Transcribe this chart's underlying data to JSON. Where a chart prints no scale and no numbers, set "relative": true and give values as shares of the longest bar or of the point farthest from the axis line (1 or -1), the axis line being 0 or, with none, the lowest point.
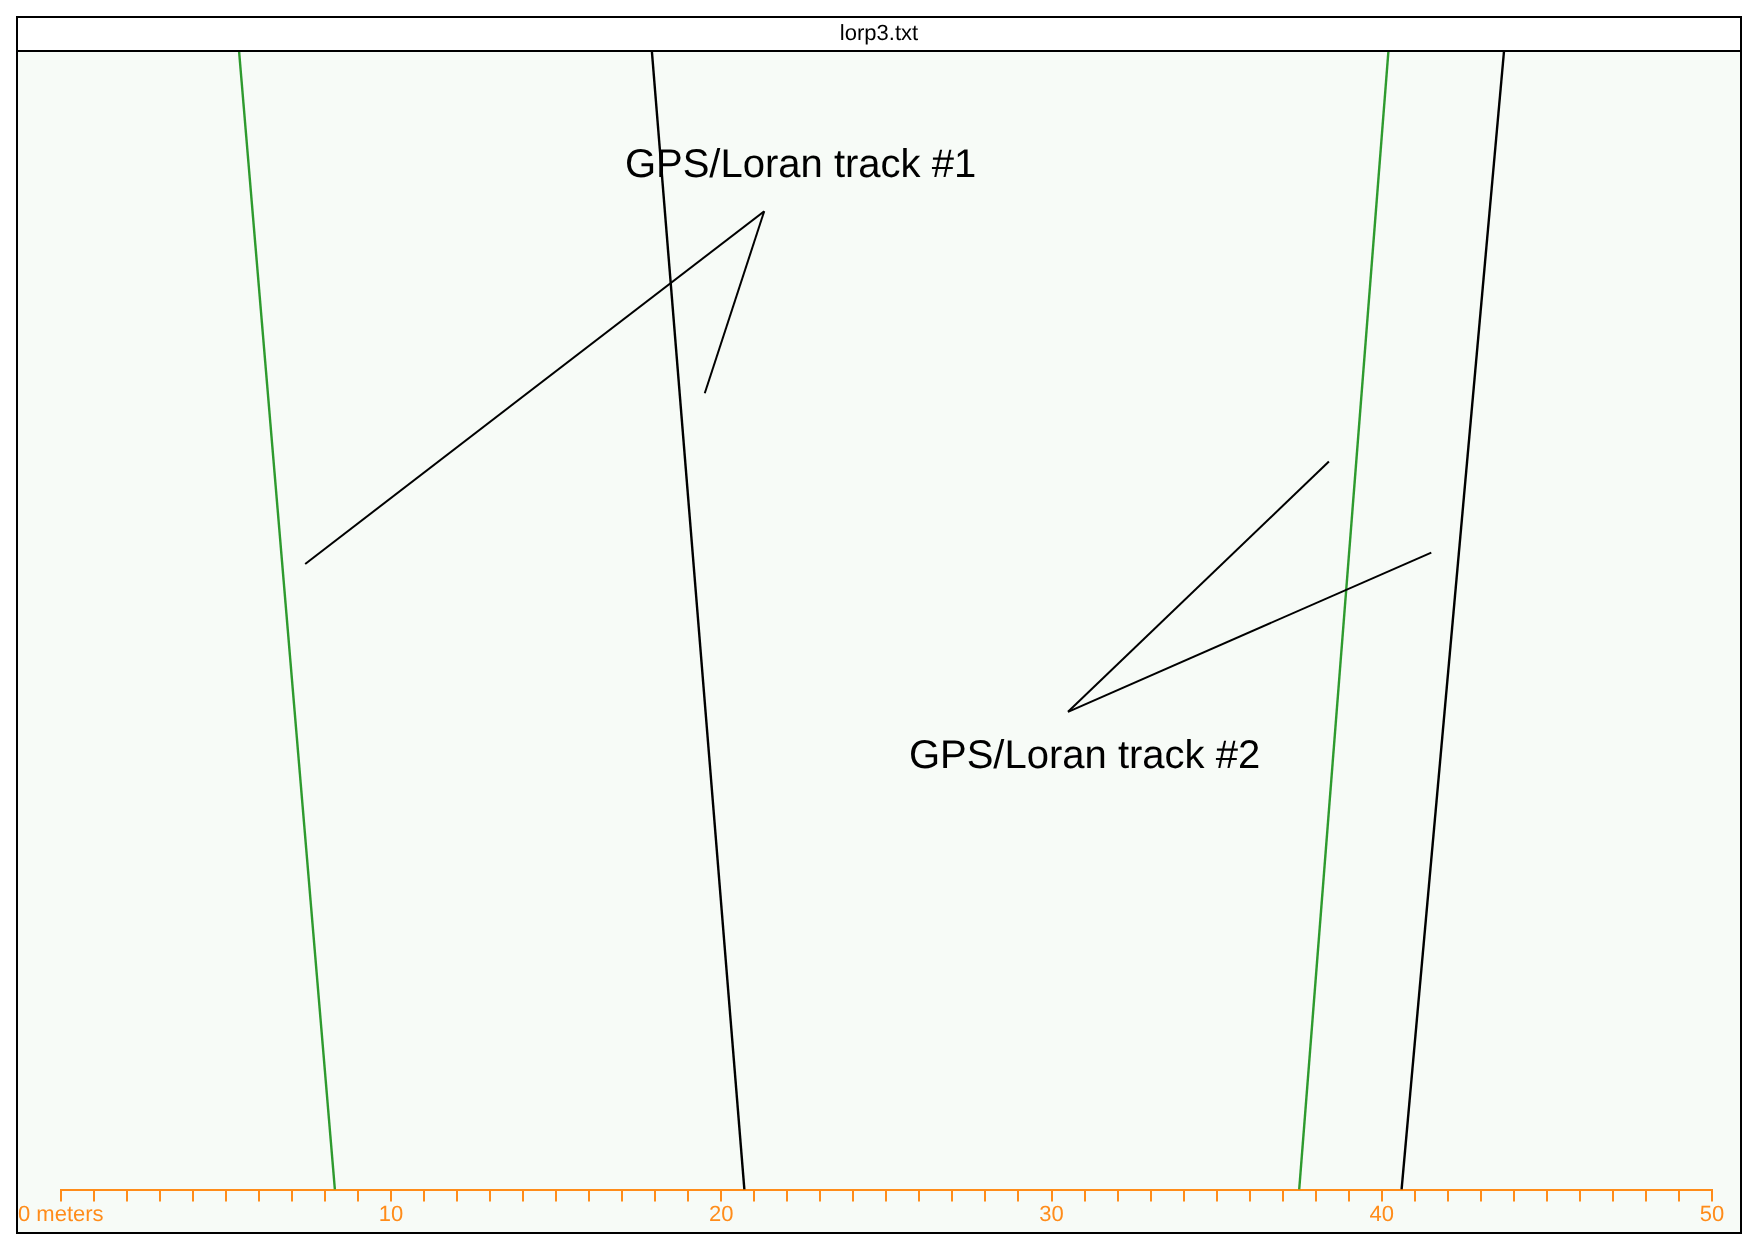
{
  "chart_data": {
    "type": "line",
    "title": "lorp3.txt",
    "relative": true,
    "legend": false,
    "grid": false,
    "marker": "none",
    "line_style": "solid",
    "xlim": [
      0,
      50
    ],
    "xticks": [
      {
        "value": 0,
        "label": "0 meters"
      },
      {
        "value": 1,
        "label": null
      },
      {
        "value": 2,
        "label": null
      },
      {
        "value": 3,
        "label": null
      },
      {
        "value": 4,
        "label": null
      },
      {
        "value": 5,
        "label": null
      },
      {
        "value": 6,
        "label": null
      },
      {
        "value": 7,
        "label": null
      },
      {
        "value": 8,
        "label": null
      },
      {
        "value": 9,
        "label": null
      },
      10,
      {
        "value": 11,
        "label": null
      },
      {
        "value": 12,
        "label": null
      },
      {
        "value": 13,
        "label": null
      },
      {
        "value": 14,
        "label": null
      },
      {
        "value": 15,
        "label": null
      },
      {
        "value": 16,
        "label": null
      },
      {
        "value": 17,
        "label": null
      },
      {
        "value": 18,
        "label": null
      },
      {
        "value": 19,
        "label": null
      },
      20,
      {
        "value": 21,
        "label": null
      },
      {
        "value": 22,
        "label": null
      },
      {
        "value": 23,
        "label": null
      },
      {
        "value": 24,
        "label": null
      },
      {
        "value": 25,
        "label": null
      },
      {
        "value": 26,
        "label": null
      },
      {
        "value": 27,
        "label": null
      },
      {
        "value": 28,
        "label": null
      },
      {
        "value": 29,
        "label": null
      },
      30,
      {
        "value": 31,
        "label": null
      },
      {
        "value": 32,
        "label": null
      },
      {
        "value": 33,
        "label": null
      },
      {
        "value": 34,
        "label": null
      },
      {
        "value": 35,
        "label": null
      },
      {
        "value": 36,
        "label": null
      },
      {
        "value": 37,
        "label": null
      },
      {
        "value": 38,
        "label": null
      },
      {
        "value": 39,
        "label": null
      },
      40,
      {
        "value": 41,
        "label": null
      },
      {
        "value": 42,
        "label": null
      },
      {
        "value": 43,
        "label": null
      },
      {
        "value": 44,
        "label": null
      },
      {
        "value": 45,
        "label": null
      },
      {
        "value": 46,
        "label": null
      },
      {
        "value": 47,
        "label": null
      },
      {
        "value": 48,
        "label": null
      },
      {
        "value": 49,
        "label": null
      },
      50
    ],
    "series": [
      {
        "color": "#2e9a2e",
        "x": [
          5.4,
          8.3
        ],
        "values": [
          1,
          0
        ]
      },
      {
        "color": "#000000",
        "x": [
          17.9,
          20.7
        ],
        "values": [
          1,
          0
        ]
      },
      {
        "color": "#2e9a2e",
        "x": [
          40.2,
          37.5
        ],
        "values": [
          1,
          0
        ]
      },
      {
        "color": "#000000",
        "x": [
          43.7,
          40.6
        ],
        "values": [
          1,
          0
        ]
      }
    ],
    "annotations": [
      "GPS/Loran track #1",
      "GPS/Loran track #2"
    ]
  }
}
